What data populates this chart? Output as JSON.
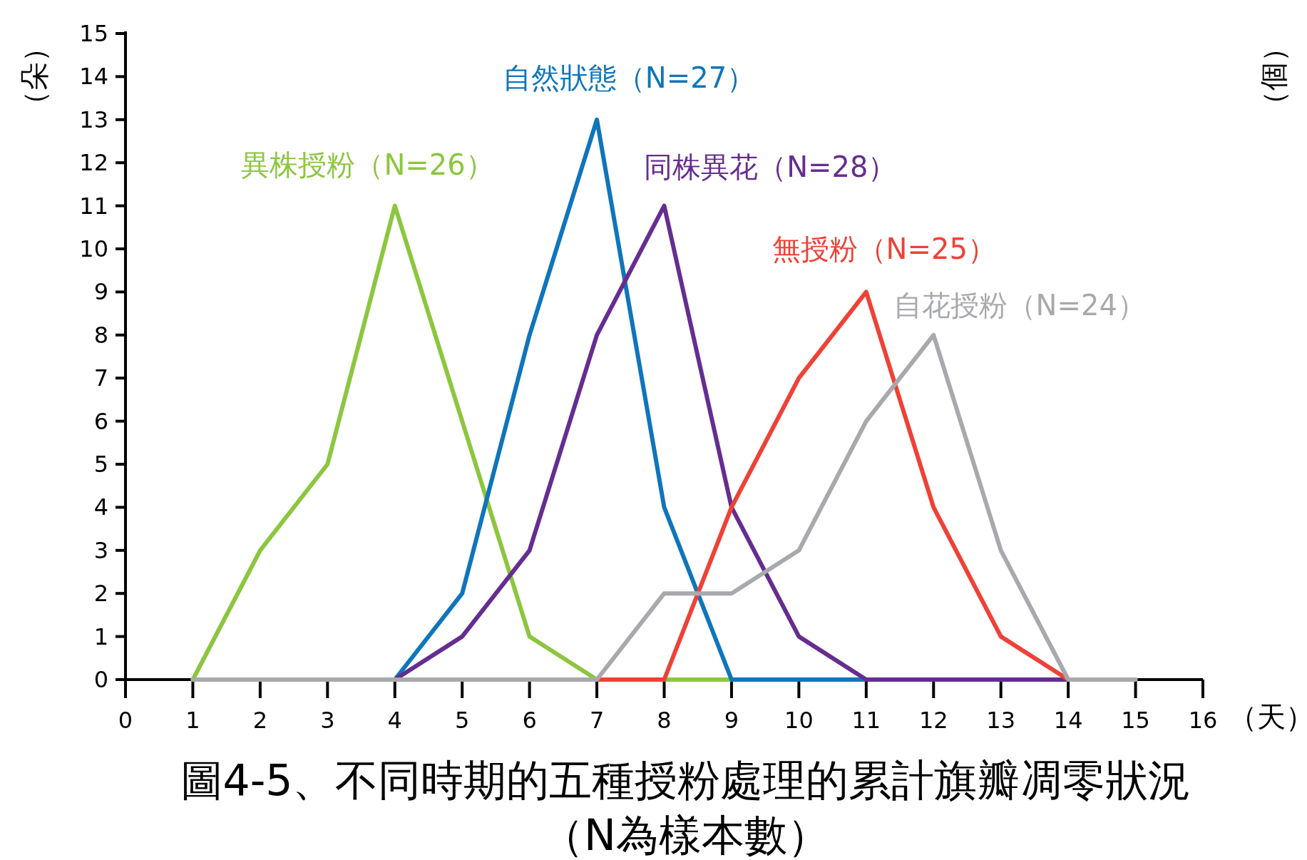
{
  "chart_data": {
    "type": "line",
    "title": "圖4-5、不同時期的五種授粉處理的累計旗瓣凋零狀況",
    "subtitle": "（N為樣本數）",
    "ylabel": "（朵）",
    "y2label": "（個）",
    "xlabel": "（天）",
    "x": [
      1,
      2,
      3,
      4,
      5,
      6,
      7,
      8,
      9,
      10,
      11,
      12,
      13,
      14,
      15
    ],
    "xlim": [
      0,
      16
    ],
    "ylim": [
      0,
      15
    ],
    "xticks": [
      0,
      1,
      2,
      3,
      4,
      5,
      6,
      7,
      8,
      9,
      10,
      11,
      12,
      13,
      14,
      15,
      16
    ],
    "yticks": [
      0,
      1,
      2,
      3,
      4,
      5,
      6,
      7,
      8,
      9,
      10,
      11,
      12,
      13,
      14,
      15
    ],
    "series": [
      {
        "name": "異株授粉（N=26）",
        "color": "#8cc63f",
        "values": [
          0,
          3,
          5,
          11,
          6,
          1,
          0,
          0,
          0,
          null,
          null,
          null,
          null,
          null,
          null
        ]
      },
      {
        "name": "自然狀態（N=27）",
        "color": "#0f75bc",
        "values": [
          null,
          null,
          null,
          0,
          2,
          8,
          13,
          4,
          0,
          0,
          0,
          null,
          null,
          null,
          null
        ]
      },
      {
        "name": "同株異花（N=28）",
        "color": "#662d91",
        "values": [
          null,
          null,
          null,
          0,
          1,
          3,
          8,
          11,
          4,
          1,
          0,
          0,
          0,
          0,
          null
        ]
      },
      {
        "name": "無授粉（N=25）",
        "color": "#ef4136",
        "values": [
          null,
          null,
          null,
          null,
          null,
          null,
          0,
          0,
          4,
          7,
          9,
          4,
          1,
          0,
          null
        ]
      },
      {
        "name": "自花授粉（N=24）",
        "color": "#a7a9ac",
        "values": [
          0,
          0,
          0,
          0,
          0,
          0,
          0,
          2,
          2,
          3,
          6,
          8,
          3,
          0,
          0
        ]
      }
    ]
  }
}
